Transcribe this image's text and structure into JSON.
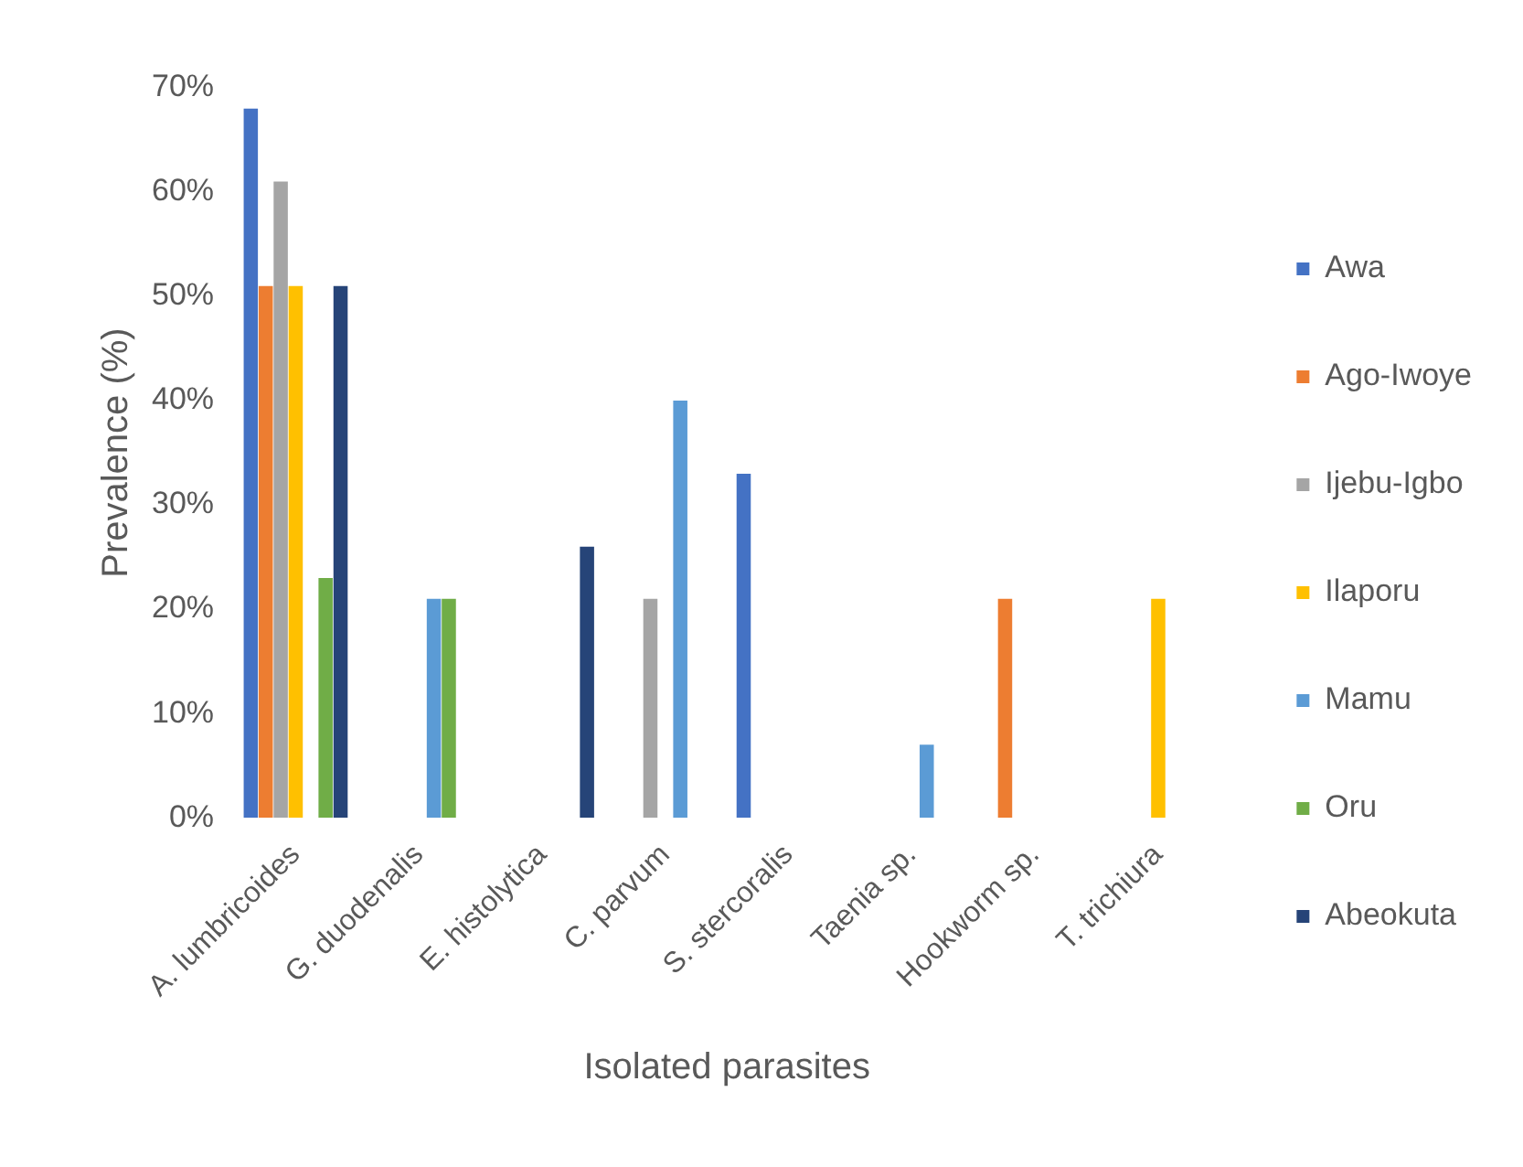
{
  "chart_data": {
    "type": "bar",
    "xlabel": "Isolated parasites",
    "ylabel": "Prevalence (%)",
    "categories": [
      "A. lumbricoides",
      "G. duodenalis",
      "E. histolytica",
      "C. parvum",
      "S. stercoralis",
      "Taenia sp.",
      "Hookworm sp.",
      "T. trichiura"
    ],
    "series": [
      {
        "name": "Awa",
        "color": "#4472c4",
        "values": [
          68,
          null,
          null,
          null,
          33,
          null,
          null,
          null
        ]
      },
      {
        "name": "Ago-Iwoye",
        "color": "#ed7d31",
        "values": [
          51,
          null,
          null,
          null,
          null,
          null,
          21,
          null
        ]
      },
      {
        "name": "Ijebu-Igbo",
        "color": "#a5a5a5",
        "values": [
          61,
          null,
          null,
          21,
          null,
          null,
          null,
          null
        ]
      },
      {
        "name": "Ilaporu",
        "color": "#ffc000",
        "values": [
          51,
          null,
          null,
          null,
          null,
          null,
          null,
          21
        ]
      },
      {
        "name": "Mamu",
        "color": "#5b9bd5",
        "values": [
          null,
          21,
          null,
          40,
          null,
          7,
          null,
          null
        ]
      },
      {
        "name": "Oru",
        "color": "#70ad47",
        "values": [
          23,
          21,
          null,
          null,
          null,
          null,
          null,
          null
        ]
      },
      {
        "name": "Abeokuta",
        "color": "#264478",
        "values": [
          51,
          null,
          26,
          null,
          null,
          null,
          null,
          null
        ]
      }
    ],
    "ylim": [
      0,
      70
    ],
    "yticks": [
      {
        "value": 0,
        "label": "0%"
      },
      {
        "value": 10,
        "label": "10%"
      },
      {
        "value": 20,
        "label": "20%"
      },
      {
        "value": 30,
        "label": "30%"
      },
      {
        "value": 40,
        "label": "40%"
      },
      {
        "value": 50,
        "label": "50%"
      },
      {
        "value": 60,
        "label": "60%"
      },
      {
        "value": 70,
        "label": "70%"
      }
    ],
    "grid": false,
    "legend": "right"
  }
}
